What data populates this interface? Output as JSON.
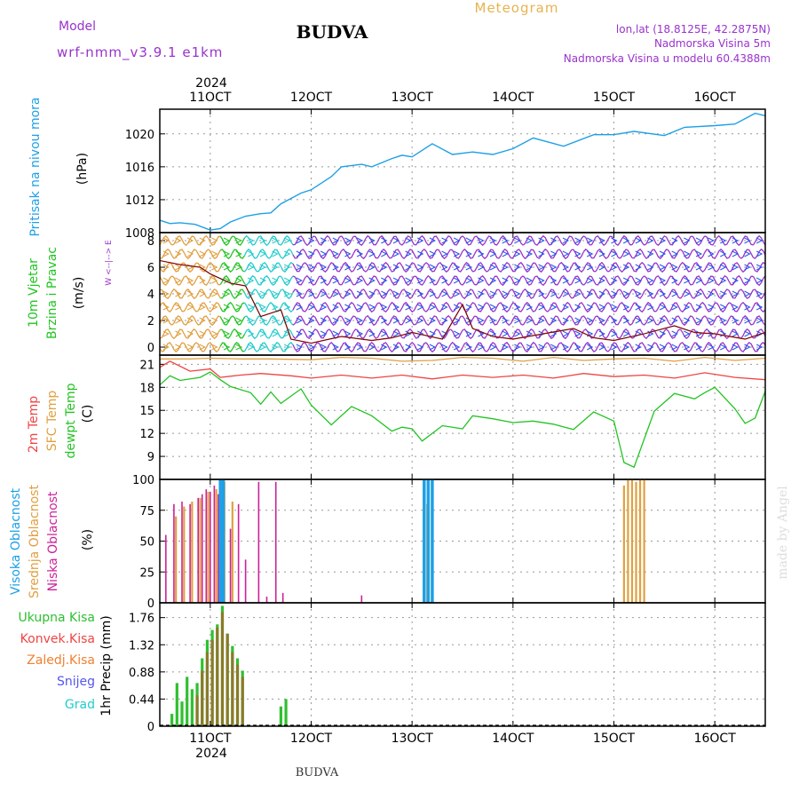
{
  "header": {
    "model_label": "Model",
    "model_name": "wrf-nmm_v3.9.1  e1km",
    "station": "BUDVA",
    "product": "Meteogram",
    "coords": "lon,lat (18.8125E, 42.2875N)",
    "elevation": "Nadmorska Visina 5m",
    "model_elevation": "Nadmorska Visina u modelu 60.4388m",
    "footer_station": "BUDVA",
    "credit": "made by Angel"
  },
  "colors": {
    "pressure": "#1ea0e6",
    "wind_label": "#22c422",
    "temp2m": "#ee4444",
    "sfc": "#e0a040",
    "dewpt": "#22c422",
    "cloud_high": "#1ea0e6",
    "cloud_mid": "#e0a040",
    "cloud_low": "#cc2299",
    "precip": "#2fc02f",
    "precip_conv": "#ee4444",
    "precip_frozen": "#f08030",
    "snow": "#5555ee",
    "hail": "#22cccc",
    "purple": "#9933cc",
    "title_gold": "#e6b450"
  },
  "axes": {
    "year": "2024",
    "x_ticks": [
      "11OCT",
      "12OCT",
      "13OCT",
      "14OCT",
      "15OCT",
      "16OCT"
    ],
    "x_range_days": [
      10.5,
      16.5
    ]
  },
  "chart_data": [
    {
      "type": "line",
      "id": "pressure",
      "ylabel_left": "Pritisak na nivou mora",
      "ylabel_unit": "(hPa)",
      "yticks": [
        "1008",
        "1012",
        "1016",
        "1020"
      ],
      "ylim": [
        1008,
        1023
      ],
      "series": [
        {
          "x": [
            10.5,
            10.6,
            10.7,
            10.85,
            11.0,
            11.1,
            11.2,
            11.35,
            11.5,
            11.6,
            11.7,
            11.9,
            12.0,
            12.2,
            12.3,
            12.5,
            12.6,
            12.8,
            12.9,
            13.0,
            13.2,
            13.4,
            13.6,
            13.8,
            14.0,
            14.2,
            14.5,
            14.8,
            15.0,
            15.2,
            15.5,
            15.7,
            16.0,
            16.2,
            16.4,
            16.5
          ],
          "y": [
            1009.5,
            1009.1,
            1009.2,
            1009.0,
            1008.3,
            1008.5,
            1009.3,
            1010.0,
            1010.3,
            1010.4,
            1011.5,
            1012.8,
            1013.2,
            1014.8,
            1016.0,
            1016.3,
            1016.0,
            1017.0,
            1017.4,
            1017.2,
            1018.8,
            1017.5,
            1017.8,
            1017.5,
            1018.2,
            1019.5,
            1018.5,
            1019.9,
            1019.9,
            1020.3,
            1019.8,
            1020.8,
            1021.0,
            1021.2,
            1022.5,
            1022.2
          ]
        }
      ]
    },
    {
      "type": "wind",
      "id": "wind",
      "ylabel_left": "10m Vjetar",
      "ylabel_left2": "Brzina i Pravac",
      "ylabel_unit": "(m/s)",
      "compass": "W  <--|-->  E",
      "yticks": [
        "0",
        "2",
        "4",
        "6",
        "8"
      ],
      "ylim": [
        -0.6,
        8.6
      ],
      "speed_series": {
        "x": [
          10.5,
          10.7,
          10.9,
          11.0,
          11.2,
          11.35,
          11.5,
          11.7,
          11.8,
          12.0,
          12.3,
          12.6,
          12.8,
          13.0,
          13.3,
          13.5,
          13.6,
          13.8,
          14.0,
          14.3,
          14.6,
          14.8,
          15.0,
          15.3,
          15.6,
          15.8,
          16.0,
          16.3,
          16.5
        ],
        "y": [
          6.5,
          6.2,
          6.0,
          5.5,
          4.8,
          4.6,
          2.3,
          2.8,
          0.6,
          0.3,
          0.8,
          0.5,
          0.7,
          1.1,
          0.6,
          3.2,
          1.4,
          0.8,
          0.6,
          1.0,
          1.4,
          0.7,
          0.5,
          1.0,
          1.6,
          1.1,
          1.0,
          0.6,
          1.1
        ]
      }
    },
    {
      "type": "line",
      "id": "temperature",
      "ylabel_left": "2m Temp",
      "ylabel_left2": "SFC Temp",
      "ylabel_left3": "dewpt Temp",
      "ylabel_unit": "(C)",
      "yticks": [
        "9",
        "12",
        "15",
        "18",
        "21"
      ],
      "ylim": [
        6,
        22.2
      ],
      "series": [
        {
          "name": "SFC Temp",
          "x": [
            10.5,
            10.8,
            11.0,
            11.3,
            11.6,
            12.0,
            12.3,
            12.6,
            12.9,
            13.2,
            13.5,
            13.8,
            14.1,
            14.4,
            14.7,
            15.0,
            15.3,
            15.6,
            15.9,
            16.2,
            16.5
          ],
          "y": [
            21.7,
            21.7,
            21.8,
            21.7,
            21.7,
            21.6,
            21.9,
            21.8,
            21.4,
            21.5,
            21.9,
            21.8,
            21.4,
            21.9,
            21.5,
            21.7,
            21.8,
            21.4,
            21.9,
            21.5,
            21.8
          ]
        },
        {
          "name": "2m Temp",
          "x": [
            10.5,
            10.6,
            10.8,
            11.0,
            11.1,
            11.3,
            11.5,
            11.8,
            12.0,
            12.3,
            12.6,
            12.9,
            13.2,
            13.5,
            13.8,
            14.1,
            14.4,
            14.7,
            15.0,
            15.3,
            15.6,
            15.9,
            16.2,
            16.5
          ],
          "y": [
            20.6,
            21.4,
            20.1,
            20.4,
            19.3,
            19.6,
            19.8,
            19.5,
            19.2,
            19.6,
            19.2,
            19.6,
            19.1,
            19.6,
            19.3,
            19.6,
            19.2,
            19.8,
            19.4,
            19.6,
            19.2,
            19.9,
            19.3,
            19.0
          ]
        },
        {
          "name": "dewpt Temp",
          "x": [
            10.5,
            10.6,
            10.7,
            10.9,
            11.0,
            11.1,
            11.2,
            11.4,
            11.5,
            11.6,
            11.7,
            11.9,
            12.0,
            12.2,
            12.4,
            12.6,
            12.8,
            12.9,
            13.0,
            13.1,
            13.3,
            13.5,
            13.6,
            13.8,
            14.0,
            14.2,
            14.4,
            14.6,
            14.8,
            15.0,
            15.1,
            15.2,
            15.4,
            15.6,
            15.8,
            15.9,
            16.0,
            16.2,
            16.3,
            16.4,
            16.5
          ],
          "y": [
            18.3,
            19.5,
            18.9,
            19.3,
            20.0,
            19.0,
            18.1,
            17.3,
            15.8,
            17.4,
            15.9,
            17.8,
            15.7,
            13.1,
            15.5,
            14.3,
            12.3,
            12.8,
            12.6,
            11.0,
            13.0,
            12.6,
            14.3,
            13.9,
            13.4,
            13.6,
            13.2,
            12.5,
            14.8,
            13.6,
            8.2,
            7.6,
            14.9,
            17.2,
            16.5,
            17.3,
            18.0,
            15.2,
            13.3,
            14.0,
            17.5
          ]
        }
      ]
    },
    {
      "type": "bar",
      "id": "clouds",
      "ylabel_left": "Visoka Oblacnost",
      "ylabel_left2": "Srednja Oblacnost",
      "ylabel_left3": "Niska Oblacnost",
      "ylabel_unit": "(%)",
      "yticks": [
        "0",
        "25",
        "50",
        "75",
        "100"
      ],
      "ylim": [
        0,
        100
      ],
      "series": [
        {
          "name": "Niska Oblacnost",
          "x": [
            10.56,
            10.64,
            10.72,
            10.8,
            10.88,
            10.92,
            10.96,
            11.0,
            11.04,
            11.08,
            11.12,
            11.2,
            11.28,
            11.35,
            11.48,
            11.56,
            11.65,
            11.72,
            12.5
          ],
          "y": [
            55,
            80,
            82,
            80,
            85,
            88,
            92,
            90,
            95,
            88,
            82,
            60,
            80,
            35,
            98,
            5,
            98,
            8,
            6
          ]
        },
        {
          "name": "Srednja Oblacnost",
          "x": [
            10.66,
            10.74,
            10.82,
            10.9,
            10.98,
            11.06,
            11.14,
            11.22,
            13.15,
            15.1,
            15.14,
            15.18,
            15.22,
            15.26,
            15.3
          ],
          "y": [
            70,
            78,
            82,
            85,
            90,
            92,
            98,
            82,
            80,
            95,
            100,
            100,
            98,
            100,
            100
          ]
        },
        {
          "name": "Visoka Oblacnost",
          "x": [
            11.1,
            11.13,
            13.12,
            13.16,
            13.2
          ],
          "y": [
            100,
            100,
            100,
            100,
            100
          ]
        }
      ]
    },
    {
      "type": "bar",
      "id": "precip",
      "ylabel_left": "Ukupna Kisa",
      "ylabel_left2": "Konvek.Kisa",
      "ylabel_left3": "Zaledj.Kisa",
      "ylabel_left4": "Snijeg",
      "ylabel_left5": "Grad",
      "ylabel_unit": "1hr Precip (mm)",
      "yticks": [
        "0",
        "0.44",
        "0.88",
        "1.32",
        "1.76"
      ],
      "ylim": [
        0,
        2.0
      ],
      "series": [
        {
          "name": "Ukupna Kisa",
          "x": [
            10.62,
            10.67,
            10.72,
            10.77,
            10.82,
            10.87,
            10.92,
            10.97,
            11.02,
            11.07,
            11.12,
            11.17,
            11.22,
            11.27,
            11.32,
            11.7,
            11.75
          ],
          "y": [
            0.2,
            0.7,
            0.4,
            0.8,
            0.6,
            0.7,
            1.1,
            1.4,
            1.56,
            1.65,
            1.95,
            1.5,
            1.3,
            1.1,
            0.9,
            0.32,
            0.44
          ]
        },
        {
          "name": "Konvek.Kisa",
          "x": [
            10.87,
            10.92,
            10.97,
            11.02,
            11.07,
            11.12,
            11.17,
            11.22,
            11.27,
            11.32
          ],
          "y": [
            0.5,
            0.9,
            1.2,
            1.4,
            1.6,
            1.85,
            1.5,
            1.2,
            1.0,
            0.8
          ]
        }
      ]
    }
  ]
}
